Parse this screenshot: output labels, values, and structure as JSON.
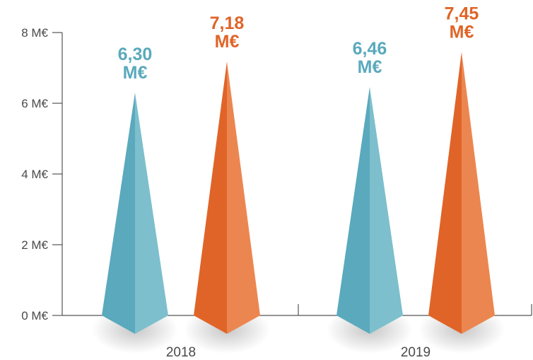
{
  "chart_data": {
    "type": "bar",
    "title": "",
    "xlabel": "",
    "ylabel": "",
    "ylim": [
      0,
      8
    ],
    "yticks": [
      {
        "value": 0,
        "label": "0 M€"
      },
      {
        "value": 2,
        "label": "2 M€"
      },
      {
        "value": 4,
        "label": "4 M€"
      },
      {
        "value": 6,
        "label": "6 M€"
      },
      {
        "value": 8,
        "label": "8 M€"
      }
    ],
    "categories": [
      "2018",
      "2019"
    ],
    "series": [
      {
        "color": "#5aa9bd",
        "color_light": "#7dbfcc",
        "values": [
          6.3,
          6.46
        ],
        "labels": [
          [
            "6,30",
            "M€"
          ],
          [
            "6,46",
            "M€"
          ]
        ]
      },
      {
        "color": "#e06428",
        "color_light": "#ec8650",
        "values": [
          7.18,
          7.45
        ],
        "labels": [
          [
            "7,18",
            "M€"
          ],
          [
            "7,45",
            "M€"
          ]
        ]
      }
    ],
    "bar_shape": "spike",
    "grid": false,
    "legend": "none"
  }
}
